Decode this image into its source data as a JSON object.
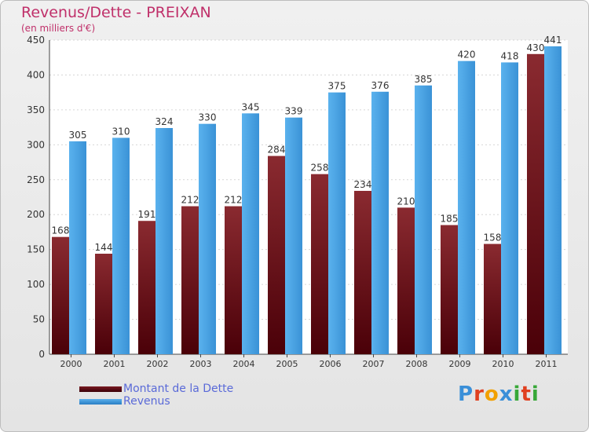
{
  "chart_data": {
    "type": "bar",
    "title": "Revenus/Dette - PREIXAN",
    "subtitle": "(en milliers d'€)",
    "categories": [
      "2000",
      "2001",
      "2002",
      "2003",
      "2004",
      "2005",
      "2006",
      "2007",
      "2008",
      "2009",
      "2010",
      "2011"
    ],
    "series": [
      {
        "name": "Montant de la Dette",
        "color": "#7a1a22",
        "values": [
          168,
          144,
          191,
          212,
          212,
          284,
          258,
          234,
          210,
          185,
          158,
          430
        ]
      },
      {
        "name": "Revenus",
        "color": "#3d97dc",
        "values": [
          305,
          310,
          324,
          330,
          345,
          339,
          375,
          376,
          385,
          420,
          418,
          441
        ]
      }
    ],
    "ylim": [
      0,
      450
    ],
    "yticks": [
      0,
      50,
      100,
      150,
      200,
      250,
      300,
      350,
      400,
      450
    ],
    "grid": true,
    "legend": "bottom-left"
  },
  "branding": {
    "logo_letters": [
      "P",
      "r",
      "o",
      "x",
      "i",
      "t",
      "i"
    ],
    "logo_colors": [
      "#3a8fd8",
      "#e04020",
      "#f2a000",
      "#3a8fd8",
      "#38a838",
      "#e04020",
      "#38a838"
    ]
  }
}
